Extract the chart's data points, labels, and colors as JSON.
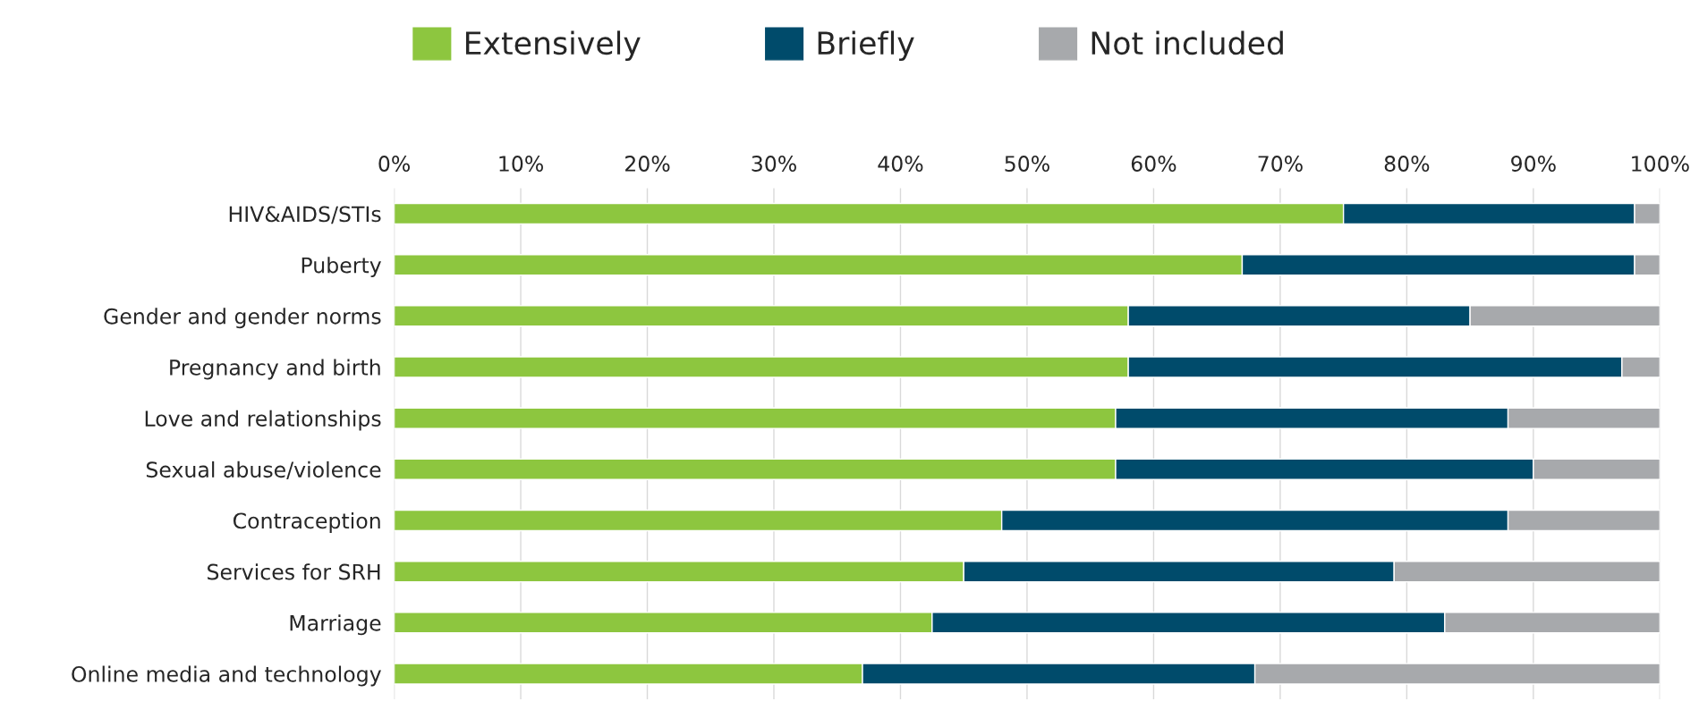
{
  "chart_data": {
    "type": "bar",
    "orientation": "horizontal",
    "stacked": true,
    "categories": [
      "HIV&AIDS/STIs",
      "Puberty",
      "Gender and gender norms",
      "Pregnancy and birth",
      "Love and relationships",
      "Sexual abuse/violence",
      "Contraception",
      "Services for SRH",
      "Marriage",
      "Online media and technology"
    ],
    "series": [
      {
        "name": "Extensively",
        "color": "#8dc63f",
        "values": [
          75,
          67,
          58,
          58,
          57,
          57,
          48,
          45,
          42.5,
          37
        ]
      },
      {
        "name": "Briefly",
        "color": "#004b6b",
        "values": [
          23,
          31,
          27,
          39,
          31,
          33,
          40,
          34,
          40.5,
          31
        ]
      },
      {
        "name": "Not included",
        "color": "#a7a9ac",
        "values": [
          2,
          2,
          15,
          3,
          12,
          10,
          12,
          21,
          17,
          32
        ]
      }
    ],
    "xlim": [
      0,
      100
    ],
    "xticks": [
      {
        "value": 0,
        "label": "0%"
      },
      {
        "value": 10,
        "label": "10%"
      },
      {
        "value": 20,
        "label": "20%"
      },
      {
        "value": 30,
        "label": "30%"
      },
      {
        "value": 40,
        "label": "40%"
      },
      {
        "value": 50,
        "label": "50%"
      },
      {
        "value": 60,
        "label": "60%"
      },
      {
        "value": 70,
        "label": "70%"
      },
      {
        "value": 80,
        "label": "80%"
      },
      {
        "value": 90,
        "label": "90%"
      },
      {
        "value": 100,
        "label": "100%"
      }
    ],
    "grid": "x",
    "legend": "top"
  }
}
